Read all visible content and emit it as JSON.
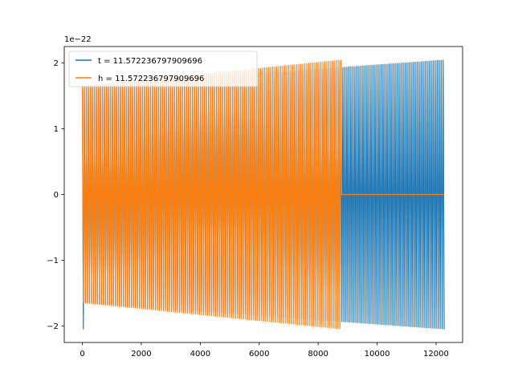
{
  "chart_data": {
    "type": "line",
    "title": "",
    "xlabel": "",
    "ylabel": "",
    "y_offset_label": "1e−22",
    "xlim": [
      -614,
      12900
    ],
    "ylim": [
      -2.25,
      2.25
    ],
    "x_ticks": [
      0,
      2000,
      4000,
      6000,
      8000,
      10000,
      12000
    ],
    "x_tick_labels": [
      "0",
      "2000",
      "4000",
      "6000",
      "8000",
      "10000",
      "12000"
    ],
    "y_ticks": [
      -2,
      -1,
      0,
      1,
      2
    ],
    "y_tick_labels": [
      "−2",
      "−1",
      "0",
      "1",
      "2"
    ],
    "grid": false,
    "legend_position": "top-left",
    "series": [
      {
        "name": "t = 11.572236797909696",
        "color": "#1f77b4",
        "x_start": 0,
        "x_end": 12280,
        "amplitude_start": 1.65,
        "amplitude_end": 2.05,
        "initial_spike": 2.05
      },
      {
        "name": "h = 11.572236797909696",
        "color": "#ff7f0e",
        "x_start": 0,
        "x_end": 8800,
        "flat_until": 12280,
        "amplitude_start": 1.65,
        "amplitude_end": 2.05
      }
    ]
  }
}
